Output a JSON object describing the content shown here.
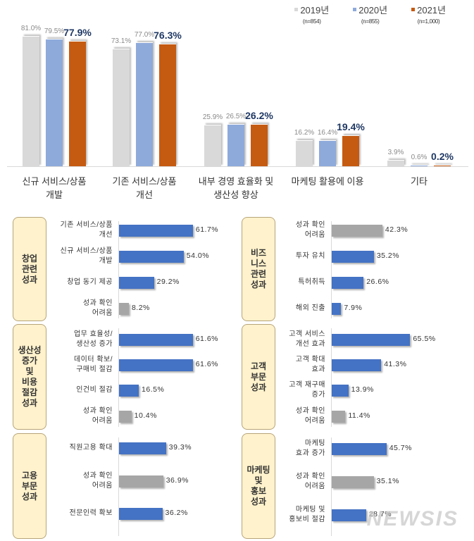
{
  "chart_data": [
    {
      "type": "bar",
      "title": "",
      "xlabel": "",
      "ylabel": "",
      "legend_position": "top-right",
      "grid": false,
      "ylim": [
        0,
        100
      ],
      "categories": [
        "신규 서비스/상품 개발",
        "기존 서비스/상품 개선",
        "내부 경영 효율화 및 생산성 향상",
        "마케팅 활용에 이용",
        "기타"
      ],
      "category_lines": [
        [
          "신규 서비스/상품",
          "개발"
        ],
        [
          "기존 서비스/상품",
          "개선"
        ],
        [
          "내부 경영 효율화 및",
          "생산성 향상"
        ],
        [
          "마케팅 활용에 이용"
        ],
        [
          "기타"
        ]
      ],
      "series": [
        {
          "name": "2019년",
          "n": "(n=854)",
          "color": "#d9d9d9",
          "values": [
            81.0,
            73.1,
            25.9,
            16.2,
            3.9
          ],
          "labels": [
            "81.0%",
            "73.1%",
            "25.9%",
            "16.2%",
            "3.9%"
          ]
        },
        {
          "name": "2020년",
          "n": "(n=855)",
          "color": "#8eaadb",
          "values": [
            79.5,
            77.0,
            26.5,
            16.4,
            0.6
          ],
          "labels": [
            "79.5%",
            "77.0%",
            "26.5%",
            "16.4%",
            "0.6%"
          ]
        },
        {
          "name": "2021년",
          "n": "(n=1,000)",
          "color": "#c55a11",
          "values": [
            77.9,
            76.3,
            26.2,
            19.4,
            0.2
          ],
          "labels": [
            "77.9%",
            "76.3%",
            "26.2%",
            "19.4%",
            "0.2%"
          ]
        }
      ]
    },
    {
      "type": "bar",
      "orientation": "horizontal",
      "title": "창업 관련 성과",
      "categories": [
        "기존 서비스/상품 개선",
        "신규 서비스/상품 개발",
        "창업 동기 제공",
        "성과 확인 어려움"
      ],
      "values": [
        61.7,
        54.0,
        29.2,
        8.2
      ]
    },
    {
      "type": "bar",
      "orientation": "horizontal",
      "title": "비즈니스 관련 성과",
      "categories": [
        "성과 확인 어려움",
        "투자 유치",
        "특허취득",
        "해외 진출"
      ],
      "values": [
        42.3,
        35.2,
        26.6,
        7.9
      ]
    },
    {
      "type": "bar",
      "orientation": "horizontal",
      "title": "생산성 증가 및 비용 절감 성과",
      "categories": [
        "업무 효율성/생산성 증가",
        "데이터 확보/구매비 절감",
        "인건비 절감",
        "성과 확인 어려움"
      ],
      "values": [
        61.6,
        61.6,
        16.5,
        10.4
      ]
    },
    {
      "type": "bar",
      "orientation": "horizontal",
      "title": "고객 부문 성과",
      "categories": [
        "고객 서비스 개선 효과",
        "고객 확대 효과",
        "고객 재구매 증가",
        "성과 확인 어려움"
      ],
      "values": [
        65.5,
        41.3,
        13.9,
        11.4
      ]
    },
    {
      "type": "bar",
      "orientation": "horizontal",
      "title": "고용 부문 성과",
      "categories": [
        "직원고용 확대",
        "성과 확인 어려움",
        "전문인력 확보"
      ],
      "values": [
        39.3,
        36.9,
        36.2
      ]
    },
    {
      "type": "bar",
      "orientation": "horizontal",
      "title": "마케팅 및 홍보 성과",
      "categories": [
        "마케팅 효과 증가",
        "성과 확인 어려움",
        "마케팅 및 홍보비 절감"
      ],
      "values": [
        45.7,
        35.1,
        28.7
      ]
    }
  ],
  "colors": {
    "positive": "#4472c4",
    "uncertain": "#a6a6a6",
    "tag_bg": "#fff2cc",
    "highlight_text": "#1f3864"
  },
  "panels": [
    {
      "id": "startup",
      "tag_lines": [
        "창업",
        "관련",
        "성과"
      ],
      "rows": [
        {
          "lines": [
            "기존 서비스/상품",
            "개선"
          ],
          "value": 61.7,
          "label": "61.7%",
          "kind": "positive"
        },
        {
          "lines": [
            "신규 서비스/상품",
            "개발"
          ],
          "value": 54.0,
          "label": "54.0%",
          "kind": "positive"
        },
        {
          "lines": [
            "창업 동기 제공"
          ],
          "value": 29.2,
          "label": "29.2%",
          "kind": "positive"
        },
        {
          "lines": [
            "성과 확인",
            "어려움"
          ],
          "value": 8.2,
          "label": "8.2%",
          "kind": "uncertain"
        }
      ]
    },
    {
      "id": "business",
      "tag_lines": [
        "비즈",
        "니스",
        "관련",
        "성과"
      ],
      "rows": [
        {
          "lines": [
            "성과 확인",
            "어려움"
          ],
          "value": 42.3,
          "label": "42.3%",
          "kind": "uncertain"
        },
        {
          "lines": [
            "투자 유치"
          ],
          "value": 35.2,
          "label": "35.2%",
          "kind": "positive"
        },
        {
          "lines": [
            "특허취득"
          ],
          "value": 26.6,
          "label": "26.6%",
          "kind": "positive"
        },
        {
          "lines": [
            "해외 진출"
          ],
          "value": 7.9,
          "label": "7.9%",
          "kind": "positive"
        }
      ]
    },
    {
      "id": "productivity",
      "tag_lines": [
        "생산성",
        "증가",
        "및",
        "비용",
        "절감",
        "성과"
      ],
      "rows": [
        {
          "lines": [
            "업무 효율성/",
            "생산성 증가"
          ],
          "value": 61.6,
          "label": "61.6%",
          "kind": "positive"
        },
        {
          "lines": [
            "데이터 확보/",
            "구매비 절감"
          ],
          "value": 61.6,
          "label": "61.6%",
          "kind": "positive"
        },
        {
          "lines": [
            "인건비 절감"
          ],
          "value": 16.5,
          "label": "16.5%",
          "kind": "positive"
        },
        {
          "lines": [
            "성과 확인",
            "어려움"
          ],
          "value": 10.4,
          "label": "10.4%",
          "kind": "uncertain"
        }
      ]
    },
    {
      "id": "customer",
      "tag_lines": [
        "고객",
        "부문",
        "성과"
      ],
      "rows": [
        {
          "lines": [
            "고객 서비스",
            "개선 효과"
          ],
          "value": 65.5,
          "label": "65.5%",
          "kind": "positive"
        },
        {
          "lines": [
            "고객 확대",
            "효과"
          ],
          "value": 41.3,
          "label": "41.3%",
          "kind": "positive"
        },
        {
          "lines": [
            "고객 재구매",
            "증가"
          ],
          "value": 13.9,
          "label": "13.9%",
          "kind": "positive"
        },
        {
          "lines": [
            "성과 확인",
            "어려움"
          ],
          "value": 11.4,
          "label": "11.4%",
          "kind": "uncertain"
        }
      ]
    },
    {
      "id": "employment",
      "tag_lines": [
        "고용",
        "부문",
        "성과"
      ],
      "rows": [
        {
          "lines": [
            "직원고용 확대"
          ],
          "value": 39.3,
          "label": "39.3%",
          "kind": "positive"
        },
        {
          "lines": [
            "성과 확인",
            "어려움"
          ],
          "value": 36.9,
          "label": "36.9%",
          "kind": "uncertain"
        },
        {
          "lines": [
            "전문인력 확보"
          ],
          "value": 36.2,
          "label": "36.2%",
          "kind": "positive"
        }
      ]
    },
    {
      "id": "marketing",
      "tag_lines": [
        "마케팅",
        "및",
        "홍보",
        "성과"
      ],
      "rows": [
        {
          "lines": [
            "마케팅",
            "효과 증가"
          ],
          "value": 45.7,
          "label": "45.7%",
          "kind": "positive"
        },
        {
          "lines": [
            "성과 확인",
            "어려움"
          ],
          "value": 35.1,
          "label": "35.1%",
          "kind": "uncertain"
        },
        {
          "lines": [
            "마케팅 및",
            "홍보비 절감"
          ],
          "value": 28.7,
          "label": "28.7%",
          "kind": "positive"
        }
      ]
    }
  ],
  "watermark": "NEWSIS"
}
